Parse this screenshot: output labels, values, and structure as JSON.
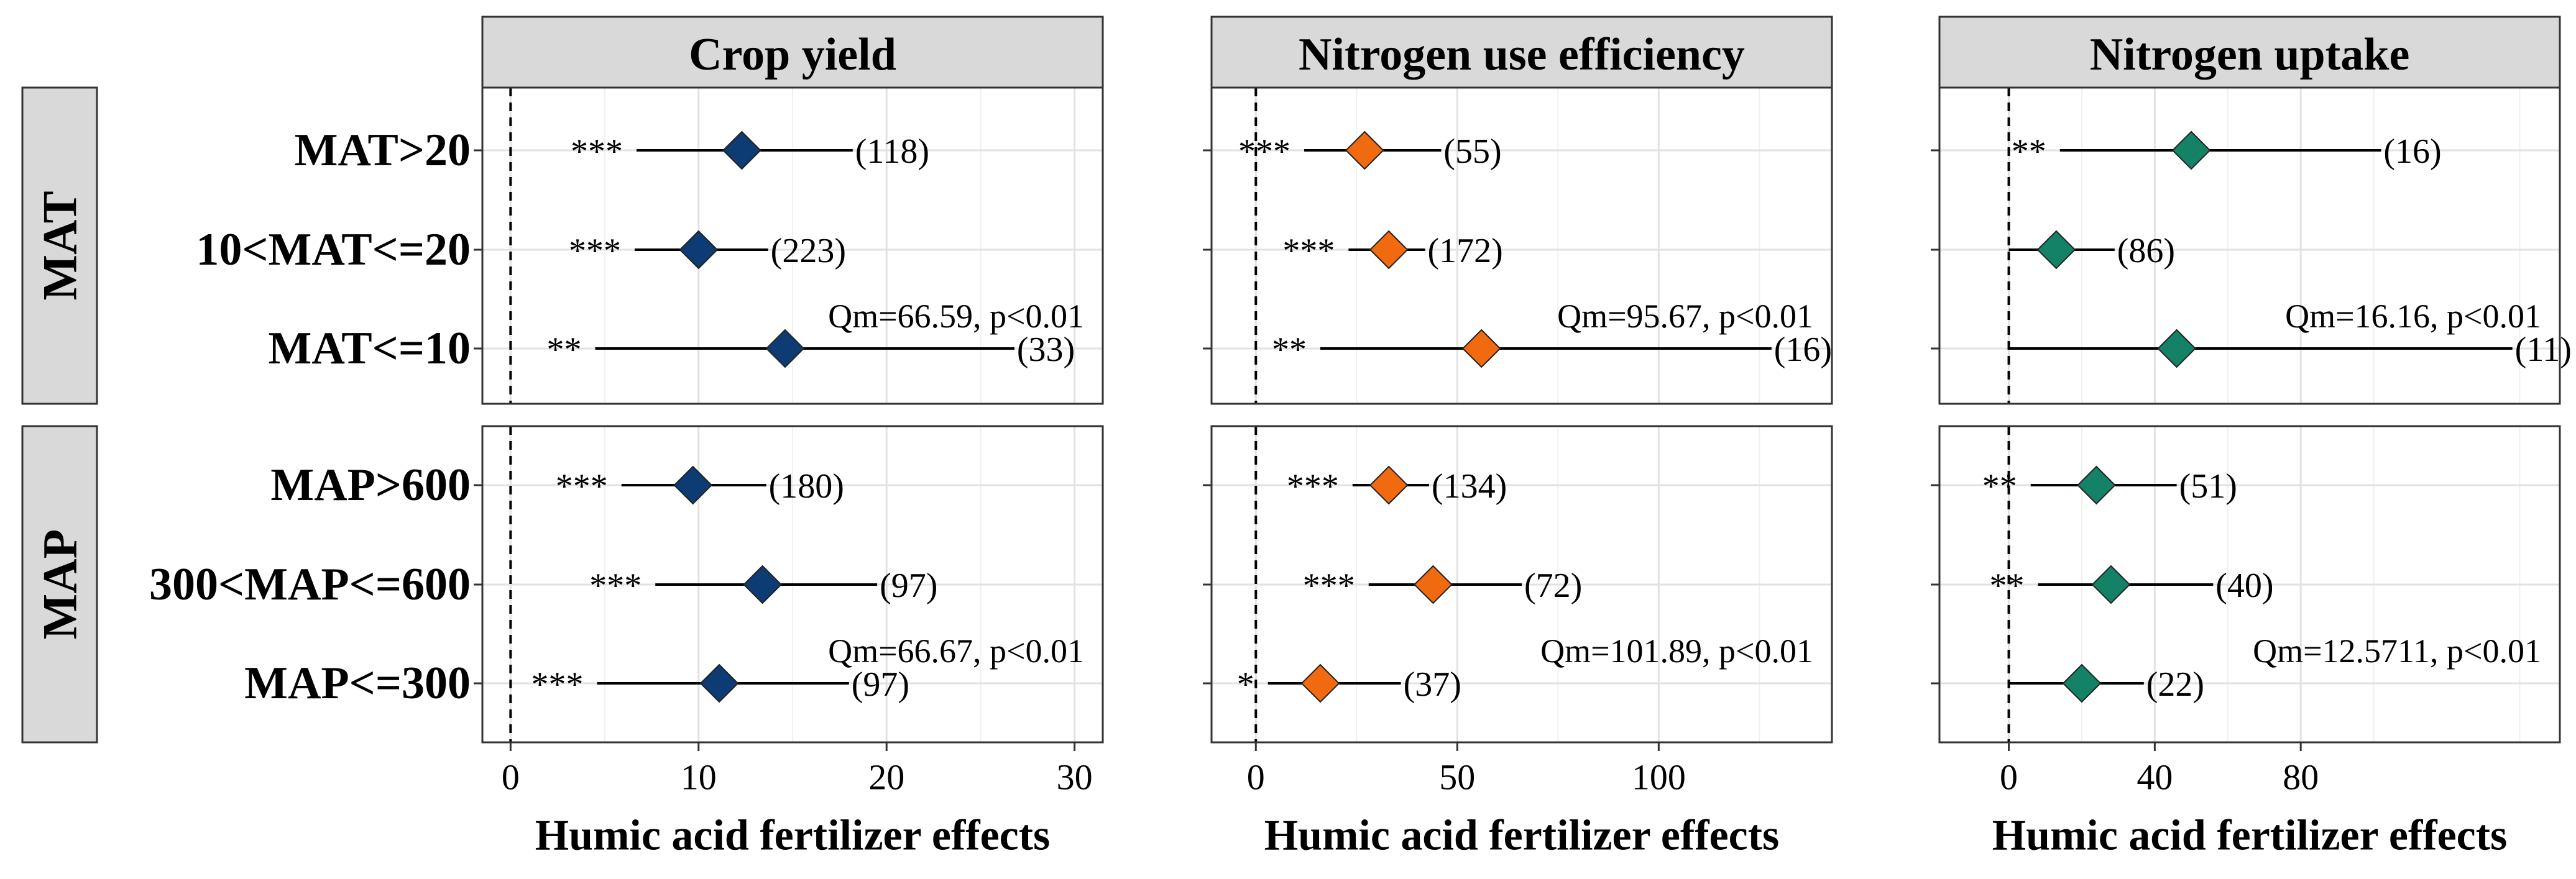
{
  "chart_data": {
    "type": "forest",
    "x_axis_title": "Humic acid fertilizer effects",
    "facet_rows": [
      {
        "name": "MAT",
        "rows": [
          "MAT>20",
          "10<MAT<=20",
          "MAT<=10"
        ]
      },
      {
        "name": "MAP",
        "rows": [
          "MAP>600",
          "300<MAP<=600",
          "MAP<=300"
        ]
      }
    ],
    "panels": [
      {
        "title": "Crop yield",
        "color": "#0d3b73",
        "xlim": [
          -1.5,
          31.5
        ],
        "ticks": [
          0,
          10,
          20,
          30
        ],
        "tick_labels": [
          "0",
          "10",
          "20",
          "30"
        ],
        "groups": [
          {
            "facet": "MAT",
            "qm": "Qm=66.59, p<0.01",
            "items": [
              {
                "label": "MAT>20",
                "est": 12.3,
                "lo": 6.7,
                "hi": 18.2,
                "n": "(118)",
                "sig": "***"
              },
              {
                "label": "10<MAT<=20",
                "est": 10.0,
                "lo": 6.6,
                "hi": 13.7,
                "n": "(223)",
                "sig": "***"
              },
              {
                "label": "MAT<=10",
                "est": 14.6,
                "lo": 4.5,
                "hi": 26.8,
                "n": "(33)",
                "sig": "**"
              }
            ]
          },
          {
            "facet": "MAP",
            "qm": "Qm=66.67, p<0.01",
            "items": [
              {
                "label": "MAP>600",
                "est": 9.7,
                "lo": 5.9,
                "hi": 13.6,
                "n": "(180)",
                "sig": "***"
              },
              {
                "label": "300<MAP<=600",
                "est": 13.4,
                "lo": 7.7,
                "hi": 19.5,
                "n": "(97)",
                "sig": "***"
              },
              {
                "label": "MAP<=300",
                "est": 11.1,
                "lo": 4.6,
                "hi": 18.0,
                "n": "(97)",
                "sig": "***"
              }
            ]
          }
        ]
      },
      {
        "title": "Nitrogen use efficiency",
        "color": "#f26a10",
        "xlim": [
          -11,
          143
        ],
        "ticks": [
          0,
          50,
          100
        ],
        "tick_labels": [
          "0",
          "50",
          "100"
        ],
        "groups": [
          {
            "facet": "MAT",
            "qm": "Qm=95.67, p<0.01",
            "items": [
              {
                "label": "MAT>20",
                "est": 27,
                "lo": 12,
                "hi": 46,
                "n": "(55)",
                "sig": "***"
              },
              {
                "label": "10<MAT<=20",
                "est": 33,
                "lo": 23,
                "hi": 42,
                "n": "(172)",
                "sig": "***"
              },
              {
                "label": "MAT<=10",
                "est": 56,
                "lo": 16,
                "hi": 128,
                "n": "(16)",
                "sig": "**"
              }
            ]
          },
          {
            "facet": "MAP",
            "qm": "Qm=101.89, p<0.01",
            "items": [
              {
                "label": "MAP>600",
                "est": 33,
                "lo": 24,
                "hi": 43,
                "n": "(134)",
                "sig": "***"
              },
              {
                "label": "300<MAP<=600",
                "est": 44,
                "lo": 28,
                "hi": 66,
                "n": "(72)",
                "sig": "***"
              },
              {
                "label": "MAP<=300",
                "est": 16,
                "lo": 3,
                "hi": 36,
                "n": "(37)",
                "sig": "*"
              }
            ]
          }
        ]
      },
      {
        "title": "Nitrogen uptake",
        "color": "#138266",
        "xlim": [
          -19,
          151
        ],
        "ticks": [
          0,
          40,
          80
        ],
        "tick_labels": [
          "0",
          "40",
          "80"
        ],
        "groups": [
          {
            "facet": "MAT",
            "qm": "Qm=16.16, p<0.01",
            "items": [
              {
                "label": "MAT>20",
                "est": 50,
                "lo": 14,
                "hi": 102,
                "n": "(16)",
                "sig": "**"
              },
              {
                "label": "10<MAT<=20",
                "est": 13,
                "lo": 0,
                "hi": 29,
                "n": "(86)",
                "sig": ""
              },
              {
                "label": "MAT<=10",
                "est": 46,
                "lo": 0,
                "hi": 138,
                "n": "(11)",
                "sig": ""
              }
            ]
          },
          {
            "facet": "MAP",
            "qm": "Qm=12.5711, p<0.01",
            "items": [
              {
                "label": "MAP>600",
                "est": 24,
                "lo": 6,
                "hi": 46,
                "n": "(51)",
                "sig": "**"
              },
              {
                "label": "300<MAP<=600",
                "est": 28,
                "lo": 8,
                "hi": 56,
                "n": "(40)",
                "sig": "**"
              },
              {
                "label": "MAP<=300",
                "est": 20,
                "lo": 0,
                "hi": 37,
                "n": "(22)",
                "sig": ""
              }
            ]
          }
        ]
      }
    ]
  }
}
